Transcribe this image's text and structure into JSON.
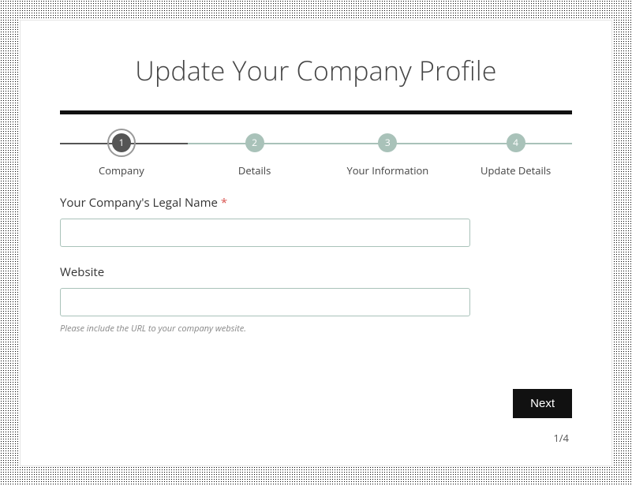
{
  "title": "Update Your Company Profile",
  "steps": {
    "active_index": 0,
    "items": [
      {
        "num": "1",
        "label": "Company"
      },
      {
        "num": "2",
        "label": "Details"
      },
      {
        "num": "3",
        "label": "Your Information"
      },
      {
        "num": "4",
        "label": "Update Details"
      }
    ],
    "positions_pct": [
      12,
      38,
      64,
      89
    ],
    "fill_pct": 25
  },
  "fields": {
    "company_name": {
      "label": "Your Company's Legal Name",
      "required_mark": "*",
      "value": ""
    },
    "website": {
      "label": "Website",
      "value": "",
      "hint": "Please include the URL to your company website."
    }
  },
  "actions": {
    "next_label": "Next"
  },
  "pager": "1/4",
  "colors": {
    "accent": "#111111",
    "step_inactive": "#a9c2b9",
    "step_active": "#555555",
    "input_border": "#a9c2b9",
    "text": "#444444",
    "required": "#d9534f"
  }
}
